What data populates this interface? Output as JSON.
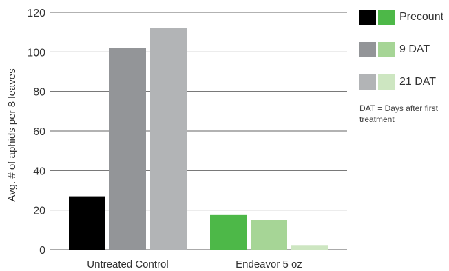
{
  "chart_data": {
    "type": "bar",
    "categories": [
      "Untreated Control",
      "Endeavor 5 oz"
    ],
    "series": [
      {
        "name": "Precount",
        "values": [
          27,
          17.5
        ]
      },
      {
        "name": "9 DAT",
        "values": [
          102,
          15
        ]
      },
      {
        "name": "21 DAT",
        "values": [
          112,
          2
        ]
      }
    ],
    "bar_colors": [
      [
        "#000000",
        "#939598",
        "#b2b4b6"
      ],
      [
        "#4db848",
        "#a6d596",
        "#cde6c1"
      ]
    ],
    "ylabel": "Avg. # of aphids per 8 leaves",
    "xlabel": "",
    "ylim": [
      0,
      120
    ],
    "yticks": [
      0,
      20,
      40,
      60,
      80,
      100,
      120
    ],
    "grid": true,
    "legend_position": "right",
    "legend_note": "DAT = Days after first treatment"
  },
  "legend": {
    "items": [
      {
        "label": "Precount",
        "colors": [
          "#000000",
          "#4db848"
        ]
      },
      {
        "label": "9 DAT",
        "colors": [
          "#939598",
          "#a6d596"
        ]
      },
      {
        "label": "21 DAT",
        "colors": [
          "#b2b4b6",
          "#cde6c1"
        ]
      }
    ],
    "note": "DAT = Days after first treatment"
  }
}
